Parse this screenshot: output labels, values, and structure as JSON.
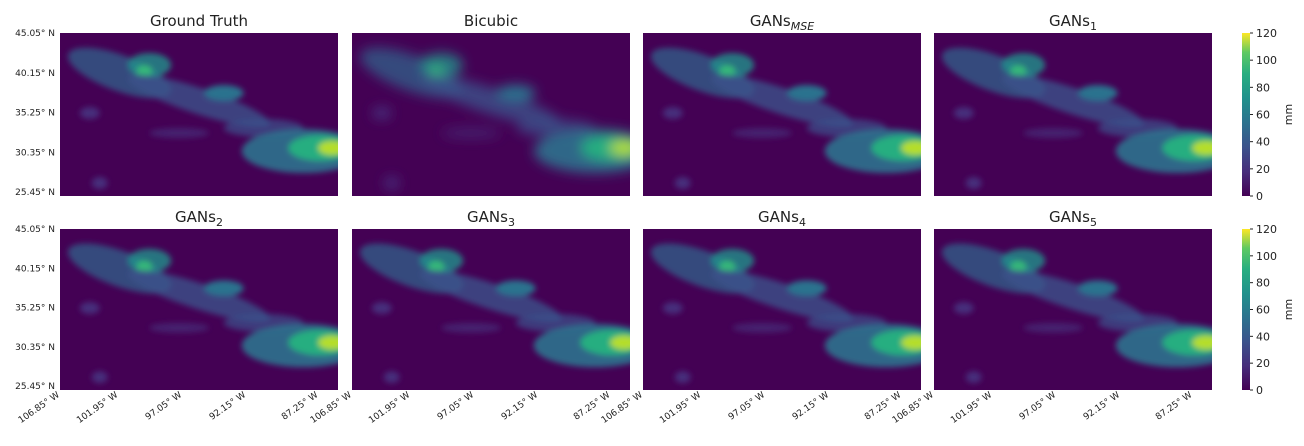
{
  "figure": {
    "panels": [
      {
        "title": "Ground Truth"
      },
      {
        "title": "Bicubic"
      },
      {
        "title": "GANs",
        "subscript": "MSE"
      },
      {
        "title": "GANs",
        "subscript": "1"
      },
      {
        "title": "GANs",
        "subscript": "2"
      },
      {
        "title": "GANs",
        "subscript": "3"
      },
      {
        "title": "GANs",
        "subscript": "4"
      },
      {
        "title": "GANs",
        "subscript": "5"
      }
    ],
    "lat_ticks": [
      "45.05° N",
      "40.15° N",
      "35.25° N",
      "30.35° N",
      "25.45° N"
    ],
    "lon_ticks": [
      "106.85° W",
      "101.95° W",
      "97.05° W",
      "92.15° W",
      "87.25° W"
    ],
    "colorbar": {
      "label": "mm",
      "lim": [
        0,
        120
      ],
      "ticks": [
        0,
        20,
        40,
        60,
        80,
        100,
        120
      ]
    }
  }
}
